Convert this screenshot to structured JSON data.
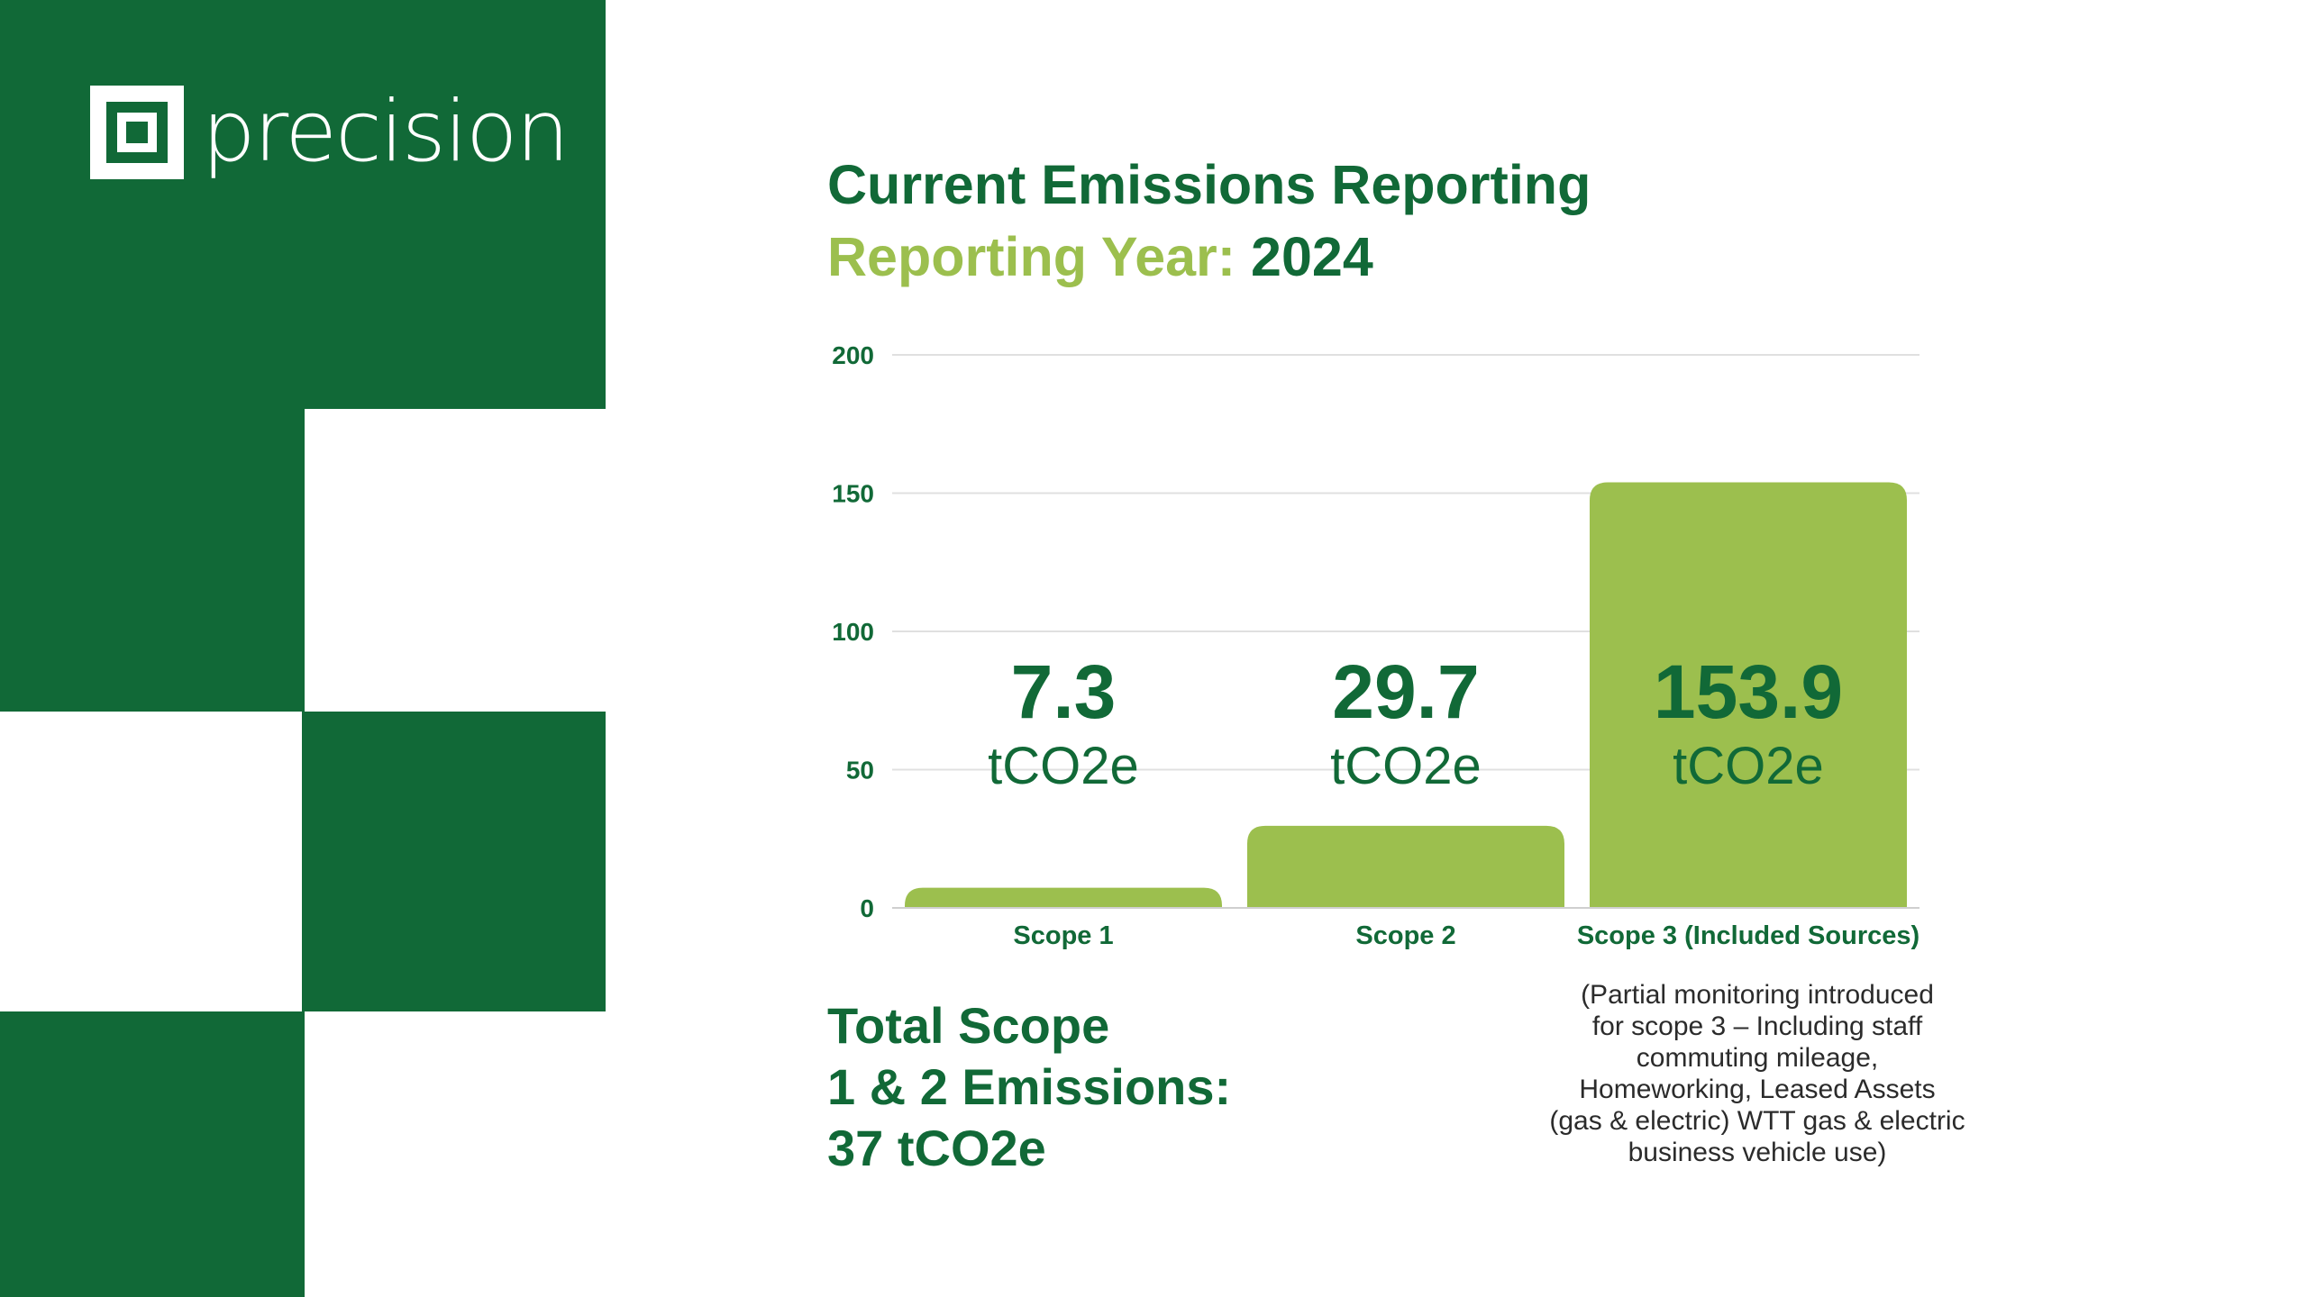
{
  "brand": {
    "name": "precision",
    "colors": {
      "dark_green": "#116937",
      "light_green": "#9cbf4e",
      "white": "#ffffff"
    }
  },
  "header": {
    "title": "Current Emissions Reporting",
    "subtitle_label": "Reporting Year:",
    "subtitle_year": "2024"
  },
  "chart_data": {
    "type": "bar",
    "categories": [
      "Scope 1",
      "Scope 2",
      "Scope 3 (Included Sources)"
    ],
    "values": [
      7.3,
      29.7,
      153.9
    ],
    "value_labels": [
      "7.3",
      "29.7",
      "153.9"
    ],
    "unit": "tCO2e",
    "title": "",
    "xlabel": "",
    "ylabel": "",
    "ylim": [
      0,
      200
    ],
    "yticks": [
      "0",
      "50",
      "100",
      "150",
      "200"
    ],
    "grid": true,
    "legend": "none",
    "bar_color": "#9cbf4e",
    "label_color": "#116937"
  },
  "summary": {
    "lines": [
      "Total Scope",
      "1 & 2 Emissions:",
      "37 tCO2e"
    ]
  },
  "footnote": {
    "lines": [
      "(Partial monitoring introduced",
      "for scope 3 – Including staff",
      "commuting mileage,",
      "Homeworking, Leased Assets",
      "(gas & electric) WTT gas & electric",
      "business vehicle use)"
    ]
  }
}
